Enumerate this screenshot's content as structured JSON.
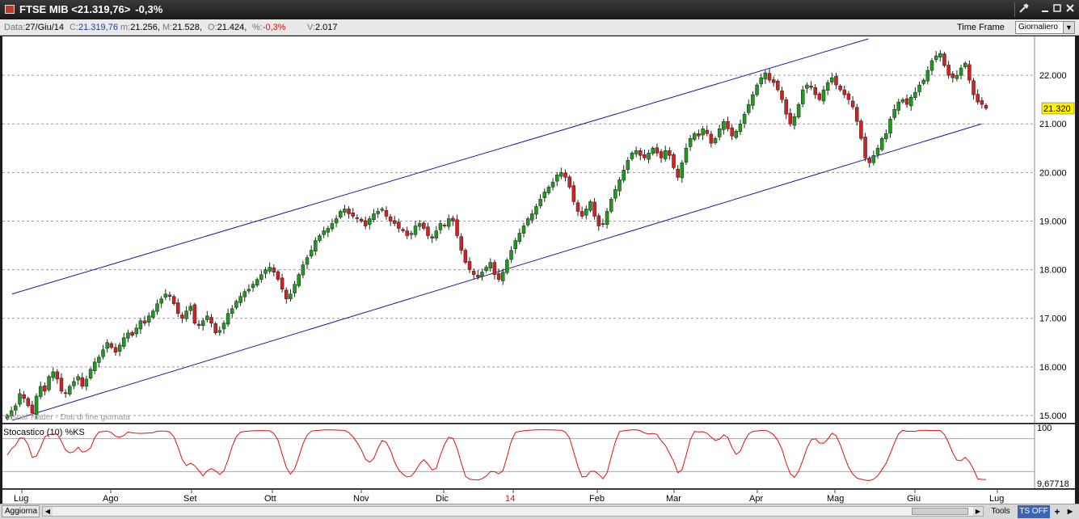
{
  "window": {
    "title": "FTSE MIB <21.319,76>",
    "change": "-0,3%",
    "icons": [
      "tools-icon",
      "minimize-icon",
      "maximize-icon",
      "close-icon"
    ]
  },
  "infobar": {
    "data_label": "Data:",
    "data_value": "27/Giu/14",
    "close_label": "C:",
    "close_value": "21.319,76",
    "min_label": "m:",
    "min_value": "21.256,",
    "max_label": "M:",
    "max_value": "21.528,",
    "open_label": "O:",
    "open_value": "21.424,",
    "pct_label": "%:",
    "pct_value": "-0,3%",
    "vol_label": "V:",
    "vol_value": "2.017",
    "timeframe_label": "Time Frame",
    "timeframe_value": "Giornaliero"
  },
  "watermark": "Visual Trader - Dati di fine giornata",
  "colors": {
    "up": "#1e9a1e",
    "down": "#d42020",
    "trendline": "#1a1aa0",
    "stochastic": "#e01010",
    "last_price_bg": "#ffef00"
  },
  "chart_data": {
    "type": "candlestick",
    "y_ticks": [
      "15.000",
      "16.000",
      "17.000",
      "18.000",
      "19.000",
      "20.000",
      "21.000",
      "22.000"
    ],
    "ylim": [
      14850,
      22800
    ],
    "last_price_label": "21.320",
    "last_price": 21320,
    "x_labels": [
      "Lug",
      "Ago",
      "Set",
      "Ott",
      "Nov",
      "Dic",
      "14",
      "Feb",
      "Mar",
      "Apr",
      "Mag",
      "Giu",
      "Lug"
    ],
    "close_series": [
      15000,
      15100,
      15200,
      15450,
      15350,
      15200,
      15050,
      15400,
      15600,
      15500,
      15800,
      15900,
      15750,
      15500,
      15450,
      15600,
      15700,
      15800,
      15600,
      15750,
      15950,
      16100,
      16200,
      16350,
      16500,
      16400,
      16300,
      16450,
      16600,
      16700,
      16650,
      16800,
      16950,
      16900,
      17050,
      17150,
      17300,
      17400,
      17500,
      17450,
      17300,
      17100,
      17000,
      17150,
      17250,
      16900,
      16850,
      16950,
      17050,
      16900,
      16700,
      16750,
      16900,
      17100,
      17200,
      17350,
      17450,
      17550,
      17600,
      17700,
      17800,
      17900,
      18000,
      18050,
      17950,
      17800,
      17600,
      17400,
      17500,
      17700,
      17900,
      18100,
      18250,
      18400,
      18600,
      18700,
      18800,
      18850,
      18950,
      19050,
      19200,
      19250,
      19150,
      19100,
      19050,
      19000,
      18900,
      19050,
      19150,
      19200,
      19250,
      19100,
      19000,
      18950,
      18850,
      18800,
      18700,
      18750,
      18900,
      18950,
      18850,
      18700,
      18650,
      18800,
      18950,
      18900,
      19050,
      19000,
      18700,
      18400,
      18150,
      18000,
      17900,
      17850,
      17950,
      18050,
      18150,
      17900,
      17800,
      17950,
      18200,
      18400,
      18600,
      18750,
      18900,
      19050,
      19150,
      19300,
      19450,
      19600,
      19700,
      19800,
      19950,
      20000,
      19900,
      19700,
      19400,
      19200,
      19100,
      19250,
      19400,
      19100,
      18900,
      18950,
      19200,
      19450,
      19650,
      19850,
      20050,
      20250,
      20400,
      20450,
      20350,
      20300,
      20400,
      20500,
      20400,
      20300,
      20450,
      20350,
      20100,
      19900,
      20200,
      20500,
      20700,
      20800,
      20750,
      20900,
      20800,
      20600,
      20700,
      20900,
      21050,
      20900,
      20750,
      20850,
      21000,
      21200,
      21400,
      21600,
      21800,
      21950,
      22050,
      21900,
      21850,
      21700,
      21500,
      21200,
      21000,
      21150,
      21400,
      21700,
      21800,
      21750,
      21600,
      21500,
      21700,
      21850,
      21950,
      21800,
      21700,
      21600,
      21500,
      21350,
      21050,
      20700,
      20300,
      20200,
      20350,
      20500,
      20700,
      20800,
      21100,
      21300,
      21450,
      21500,
      21400,
      21550,
      21650,
      21800,
      21900,
      22100,
      22300,
      22400,
      22450,
      22200,
      22000,
      21950,
      22000,
      22150,
      22250,
      21900,
      21600,
      21450,
      21400,
      21320
    ],
    "trendline_upper": {
      "start": {
        "date": "2013-07-01",
        "value": 17500
      },
      "end": {
        "date": "2014-05-15",
        "value": 22750
      }
    },
    "trendline_lower": {
      "start": {
        "date": "2013-07-01",
        "value": 14900
      },
      "end": {
        "date": "2014-06-26",
        "value": 21000
      }
    },
    "stochastic": {
      "label": "Stocastico (10) %KS",
      "y_ticks": [
        "100"
      ],
      "last_value": "9,67718",
      "ylim": [
        0,
        100
      ]
    }
  },
  "bottombar": {
    "update_label": "Aggiorna",
    "tools_label": "Tools",
    "tsoff_label": "TS OFF",
    "plus_label": "+"
  }
}
